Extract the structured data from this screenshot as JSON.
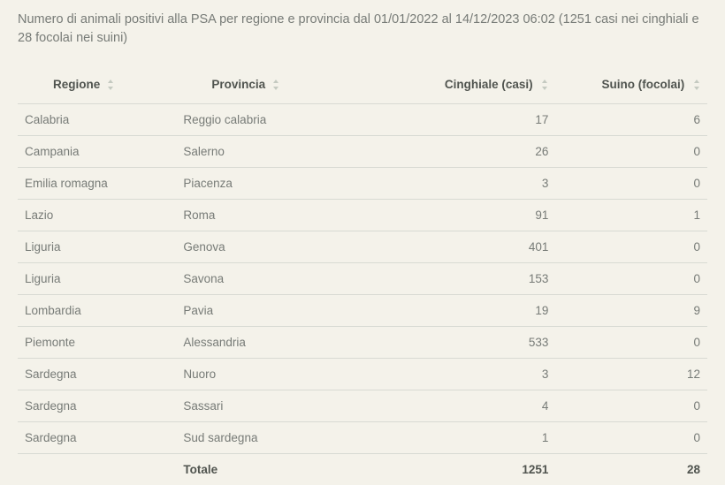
{
  "title": "Numero di animali positivi alla PSA per regione e provincia dal 01/01/2022 al 14/12/2023 06:02 (1251 casi nei cinghiali e 28 focolai nei suini)",
  "table": {
    "columns": [
      {
        "key": "regione",
        "label": "Regione",
        "align": "left"
      },
      {
        "key": "provincia",
        "label": "Provincia",
        "align": "left"
      },
      {
        "key": "cinghiale",
        "label": "Cinghiale (casi)",
        "align": "right"
      },
      {
        "key": "suino",
        "label": "Suino (focolai)",
        "align": "right"
      }
    ],
    "rows": [
      {
        "regione": "Calabria",
        "provincia": "Reggio calabria",
        "cinghiale": "17",
        "suino": "6"
      },
      {
        "regione": "Campania",
        "provincia": "Salerno",
        "cinghiale": "26",
        "suino": "0"
      },
      {
        "regione": "Emilia romagna",
        "provincia": "Piacenza",
        "cinghiale": "3",
        "suino": "0"
      },
      {
        "regione": "Lazio",
        "provincia": "Roma",
        "cinghiale": "91",
        "suino": "1"
      },
      {
        "regione": "Liguria",
        "provincia": "Genova",
        "cinghiale": "401",
        "suino": "0"
      },
      {
        "regione": "Liguria",
        "provincia": "Savona",
        "cinghiale": "153",
        "suino": "0"
      },
      {
        "regione": "Lombardia",
        "provincia": "Pavia",
        "cinghiale": "19",
        "suino": "9"
      },
      {
        "regione": "Piemonte",
        "provincia": "Alessandria",
        "cinghiale": "533",
        "suino": "0"
      },
      {
        "regione": "Sardegna",
        "provincia": "Nuoro",
        "cinghiale": "3",
        "suino": "12"
      },
      {
        "regione": "Sardegna",
        "provincia": "Sassari",
        "cinghiale": "4",
        "suino": "0"
      },
      {
        "regione": "Sardegna",
        "provincia": "Sud sardegna",
        "cinghiale": "1",
        "suino": "0"
      }
    ],
    "footer": {
      "label": "Totale",
      "cinghiale": "1251",
      "suino": "28"
    }
  },
  "colors": {
    "background": "#f4f2ea",
    "text_muted": "#777b77",
    "text_strong": "#50544f",
    "border": "#d8dad3",
    "sort_arrow": "#b9bfb5"
  }
}
